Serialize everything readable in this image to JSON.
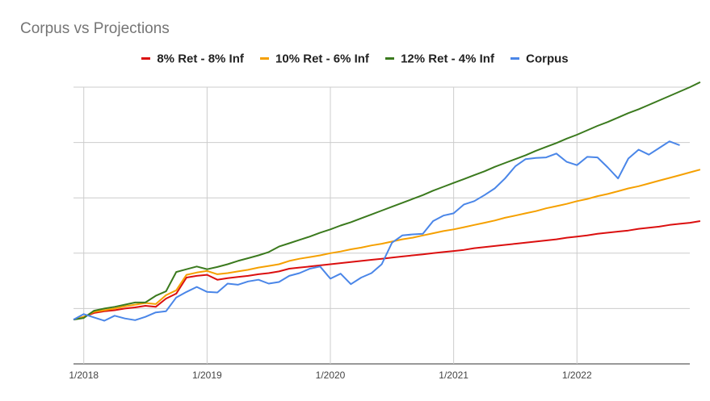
{
  "chart_data": {
    "type": "line",
    "title": "Corpus vs Projections",
    "xlabel": "",
    "ylabel": "",
    "x_start": "2017-12",
    "x_ticks": [
      "1/2018",
      "1/2019",
      "1/2020",
      "1/2021",
      "1/2022"
    ],
    "x_tick_months": [
      1,
      13,
      25,
      37,
      49
    ],
    "ylim": [
      0,
      5
    ],
    "y_gridlines": [
      0,
      1,
      2,
      3,
      4,
      5
    ],
    "y_tick_labels_visible": false,
    "grid": true,
    "legend_position": "top",
    "series": [
      {
        "name": "8% Ret - 8% Inf",
        "color": "#DB0F0F",
        "values": [
          0.8,
          0.85,
          0.92,
          0.95,
          0.97,
          1.0,
          1.02,
          1.05,
          1.03,
          1.18,
          1.27,
          1.56,
          1.59,
          1.61,
          1.52,
          1.55,
          1.57,
          1.59,
          1.62,
          1.64,
          1.67,
          1.72,
          1.74,
          1.76,
          1.78,
          1.8,
          1.82,
          1.84,
          1.86,
          1.88,
          1.9,
          1.92,
          1.94,
          1.96,
          1.98,
          2.0,
          2.02,
          2.04,
          2.06,
          2.09,
          2.11,
          2.13,
          2.15,
          2.17,
          2.19,
          2.21,
          2.23,
          2.25,
          2.28,
          2.3,
          2.32,
          2.35,
          2.37,
          2.39,
          2.41,
          2.44,
          2.46,
          2.48,
          2.51,
          2.53,
          2.55,
          2.58
        ]
      },
      {
        "name": "10% Ret - 6% Inf",
        "color": "#F5A000",
        "values": [
          0.8,
          0.85,
          0.94,
          0.97,
          1.0,
          1.04,
          1.07,
          1.1,
          1.08,
          1.24,
          1.33,
          1.61,
          1.65,
          1.68,
          1.62,
          1.64,
          1.67,
          1.7,
          1.74,
          1.77,
          1.8,
          1.86,
          1.9,
          1.93,
          1.96,
          2.0,
          2.03,
          2.07,
          2.1,
          2.14,
          2.17,
          2.21,
          2.25,
          2.28,
          2.32,
          2.36,
          2.4,
          2.43,
          2.47,
          2.51,
          2.55,
          2.59,
          2.64,
          2.68,
          2.72,
          2.76,
          2.81,
          2.85,
          2.89,
          2.94,
          2.98,
          3.03,
          3.07,
          3.12,
          3.17,
          3.21,
          3.26,
          3.31,
          3.36,
          3.41,
          3.46,
          3.51
        ]
      },
      {
        "name": "12% Ret - 4% Inf",
        "color": "#3B7A1E",
        "values": [
          0.8,
          0.83,
          0.96,
          1.0,
          1.03,
          1.07,
          1.11,
          1.11,
          1.23,
          1.31,
          1.66,
          1.71,
          1.76,
          1.71,
          1.75,
          1.8,
          1.86,
          1.91,
          1.96,
          2.02,
          2.12,
          2.18,
          2.24,
          2.3,
          2.37,
          2.43,
          2.5,
          2.56,
          2.63,
          2.7,
          2.77,
          2.84,
          2.91,
          2.98,
          3.05,
          3.13,
          3.2,
          3.27,
          3.34,
          3.41,
          3.48,
          3.56,
          3.63,
          3.7,
          3.77,
          3.85,
          3.92,
          3.99,
          4.07,
          4.14,
          4.22,
          4.3,
          4.37,
          4.45,
          4.53,
          4.6,
          4.68,
          4.76,
          4.84,
          4.92,
          5.0,
          5.09
        ]
      },
      {
        "name": "Corpus",
        "color": "#4A86E8",
        "values": [
          0.8,
          0.9,
          0.84,
          0.78,
          0.87,
          0.82,
          0.79,
          0.85,
          0.93,
          0.95,
          1.2,
          1.3,
          1.39,
          1.3,
          1.29,
          1.45,
          1.43,
          1.49,
          1.52,
          1.45,
          1.48,
          1.59,
          1.64,
          1.72,
          1.76,
          1.54,
          1.63,
          1.44,
          1.56,
          1.64,
          1.8,
          2.19,
          2.32,
          2.34,
          2.35,
          2.58,
          2.68,
          2.72,
          2.88,
          2.94,
          3.05,
          3.17,
          3.35,
          3.57,
          3.7,
          3.72,
          3.73,
          3.8,
          3.65,
          3.59,
          3.74,
          3.73,
          3.55,
          3.35,
          3.71,
          3.87,
          3.78,
          3.9,
          4.02,
          3.95
        ]
      }
    ]
  }
}
